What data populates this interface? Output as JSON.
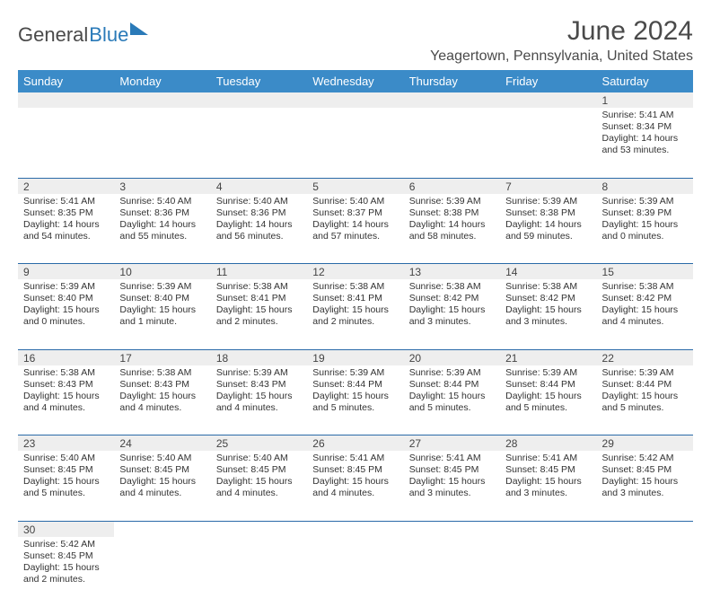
{
  "logo": {
    "part1": "General",
    "part2": "Blue"
  },
  "title": "June 2024",
  "location": "Yeagertown, Pennsylvania, United States",
  "colors": {
    "header_bg": "#3b8bc8",
    "header_text": "#ffffff",
    "daynum_bg": "#eeeeee",
    "row_divider": "#2a6aa8",
    "text": "#333333",
    "logo_accent": "#2a7ab8"
  },
  "day_headers": [
    "Sunday",
    "Monday",
    "Tuesday",
    "Wednesday",
    "Thursday",
    "Friday",
    "Saturday"
  ],
  "weeks": [
    [
      null,
      null,
      null,
      null,
      null,
      null,
      {
        "n": "1",
        "sr": "5:41 AM",
        "ss": "8:34 PM",
        "dl": "14 hours and 53 minutes."
      }
    ],
    [
      {
        "n": "2",
        "sr": "5:41 AM",
        "ss": "8:35 PM",
        "dl": "14 hours and 54 minutes."
      },
      {
        "n": "3",
        "sr": "5:40 AM",
        "ss": "8:36 PM",
        "dl": "14 hours and 55 minutes."
      },
      {
        "n": "4",
        "sr": "5:40 AM",
        "ss": "8:36 PM",
        "dl": "14 hours and 56 minutes."
      },
      {
        "n": "5",
        "sr": "5:40 AM",
        "ss": "8:37 PM",
        "dl": "14 hours and 57 minutes."
      },
      {
        "n": "6",
        "sr": "5:39 AM",
        "ss": "8:38 PM",
        "dl": "14 hours and 58 minutes."
      },
      {
        "n": "7",
        "sr": "5:39 AM",
        "ss": "8:38 PM",
        "dl": "14 hours and 59 minutes."
      },
      {
        "n": "8",
        "sr": "5:39 AM",
        "ss": "8:39 PM",
        "dl": "15 hours and 0 minutes."
      }
    ],
    [
      {
        "n": "9",
        "sr": "5:39 AM",
        "ss": "8:40 PM",
        "dl": "15 hours and 0 minutes."
      },
      {
        "n": "10",
        "sr": "5:39 AM",
        "ss": "8:40 PM",
        "dl": "15 hours and 1 minute."
      },
      {
        "n": "11",
        "sr": "5:38 AM",
        "ss": "8:41 PM",
        "dl": "15 hours and 2 minutes."
      },
      {
        "n": "12",
        "sr": "5:38 AM",
        "ss": "8:41 PM",
        "dl": "15 hours and 2 minutes."
      },
      {
        "n": "13",
        "sr": "5:38 AM",
        "ss": "8:42 PM",
        "dl": "15 hours and 3 minutes."
      },
      {
        "n": "14",
        "sr": "5:38 AM",
        "ss": "8:42 PM",
        "dl": "15 hours and 3 minutes."
      },
      {
        "n": "15",
        "sr": "5:38 AM",
        "ss": "8:42 PM",
        "dl": "15 hours and 4 minutes."
      }
    ],
    [
      {
        "n": "16",
        "sr": "5:38 AM",
        "ss": "8:43 PM",
        "dl": "15 hours and 4 minutes."
      },
      {
        "n": "17",
        "sr": "5:38 AM",
        "ss": "8:43 PM",
        "dl": "15 hours and 4 minutes."
      },
      {
        "n": "18",
        "sr": "5:39 AM",
        "ss": "8:43 PM",
        "dl": "15 hours and 4 minutes."
      },
      {
        "n": "19",
        "sr": "5:39 AM",
        "ss": "8:44 PM",
        "dl": "15 hours and 5 minutes."
      },
      {
        "n": "20",
        "sr": "5:39 AM",
        "ss": "8:44 PM",
        "dl": "15 hours and 5 minutes."
      },
      {
        "n": "21",
        "sr": "5:39 AM",
        "ss": "8:44 PM",
        "dl": "15 hours and 5 minutes."
      },
      {
        "n": "22",
        "sr": "5:39 AM",
        "ss": "8:44 PM",
        "dl": "15 hours and 5 minutes."
      }
    ],
    [
      {
        "n": "23",
        "sr": "5:40 AM",
        "ss": "8:45 PM",
        "dl": "15 hours and 5 minutes."
      },
      {
        "n": "24",
        "sr": "5:40 AM",
        "ss": "8:45 PM",
        "dl": "15 hours and 4 minutes."
      },
      {
        "n": "25",
        "sr": "5:40 AM",
        "ss": "8:45 PM",
        "dl": "15 hours and 4 minutes."
      },
      {
        "n": "26",
        "sr": "5:41 AM",
        "ss": "8:45 PM",
        "dl": "15 hours and 4 minutes."
      },
      {
        "n": "27",
        "sr": "5:41 AM",
        "ss": "8:45 PM",
        "dl": "15 hours and 3 minutes."
      },
      {
        "n": "28",
        "sr": "5:41 AM",
        "ss": "8:45 PM",
        "dl": "15 hours and 3 minutes."
      },
      {
        "n": "29",
        "sr": "5:42 AM",
        "ss": "8:45 PM",
        "dl": "15 hours and 3 minutes."
      }
    ],
    [
      {
        "n": "30",
        "sr": "5:42 AM",
        "ss": "8:45 PM",
        "dl": "15 hours and 2 minutes."
      },
      null,
      null,
      null,
      null,
      null,
      null
    ]
  ],
  "labels": {
    "sunrise": "Sunrise:",
    "sunset": "Sunset:",
    "daylight": "Daylight:"
  }
}
